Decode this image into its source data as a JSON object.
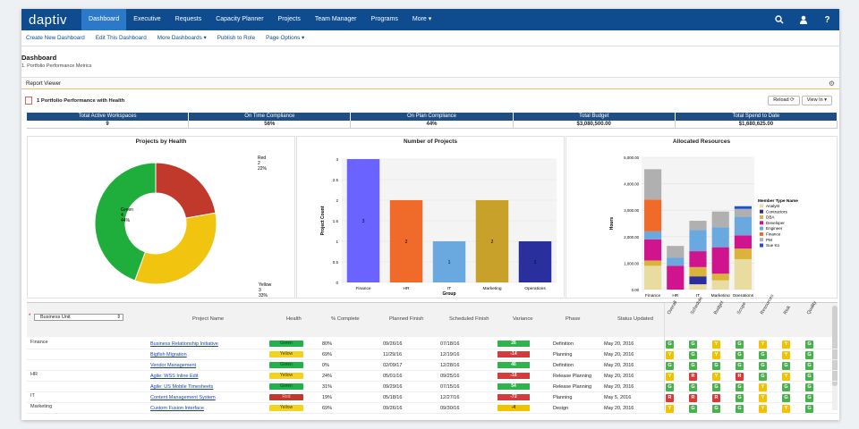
{
  "app": {
    "logo": "daptiv"
  },
  "nav": {
    "items": [
      "Dashboard",
      "Executive",
      "Requests",
      "Capacity Planner",
      "Projects",
      "Team Manager",
      "Programs",
      "More ▾"
    ]
  },
  "subnav": {
    "items": [
      "Create New Dashboard",
      "Edit This Dashboard",
      "More Dashboards ▾",
      "Publish to Role",
      "Page Options ▾"
    ]
  },
  "page": {
    "title": "Dashboard",
    "subtitle": "1. Portfolio Performance Metrics"
  },
  "report": {
    "viewer_label": "Report Viewer",
    "title": "1 Portfolio Performance with Health",
    "reload_label": "Reload",
    "viewin_label": "View In ▾"
  },
  "kpis": [
    {
      "label": "Total Active Workspaces",
      "value": "9"
    },
    {
      "label": "On Time Compliance",
      "value": "56%"
    },
    {
      "label": "On Plan Compliance",
      "value": "44%"
    },
    {
      "label": "Total Budget",
      "value": "$3,080,500.00"
    },
    {
      "label": "Total Spend to Date",
      "value": "$1,680,625.00"
    }
  ],
  "chart_data": [
    {
      "type": "pie",
      "title": "Projects by Health",
      "slices": [
        {
          "label": "Red",
          "value": 2,
          "pct": "22%",
          "color": "#c0392b"
        },
        {
          "label": "Yellow",
          "value": 3,
          "pct": "33%",
          "color": "#f1c40f"
        },
        {
          "label": "Green",
          "value": 4,
          "pct": "44%",
          "color": "#1fae3b"
        }
      ]
    },
    {
      "type": "bar",
      "title": "Number of Projects",
      "xlabel": "Group",
      "ylabel": "Project Count",
      "categories": [
        "Finance",
        "HR",
        "IT",
        "Marketing",
        "Operations"
      ],
      "values": [
        3,
        2,
        1,
        2,
        1
      ],
      "colors": [
        "#6b63ff",
        "#f06a2a",
        "#6aa8e0",
        "#c8a12a",
        "#2a2f9e"
      ],
      "ylim": [
        0,
        3
      ],
      "yticks": [
        "0",
        "0.5",
        "1",
        "1.5",
        "2",
        "2.5",
        "3"
      ]
    },
    {
      "type": "bar",
      "title": "Allocated Resources",
      "ylabel": "Hours",
      "stacked": true,
      "categories": [
        "Finance",
        "HR",
        "IT",
        "Marketing",
        "Operations"
      ],
      "ylim": [
        0,
        5000
      ],
      "yticks": [
        "0.00",
        "1,000.00",
        "2,000.00",
        "3,000.00",
        "4,000.00",
        "5,000.00"
      ],
      "legend_title": "Member Type Name",
      "series": [
        {
          "name": "Analyst",
          "color": "#e8dca0",
          "values": [
            900,
            0,
            200,
            350,
            1150
          ]
        },
        {
          "name": "Contractors",
          "color": "#2b2f9e",
          "values": [
            0,
            0,
            300,
            0,
            0
          ]
        },
        {
          "name": "DBA",
          "color": "#d9b33a",
          "values": [
            200,
            0,
            350,
            250,
            400
          ]
        },
        {
          "name": "Developer",
          "color": "#d0148e",
          "values": [
            800,
            900,
            600,
            1000,
            500
          ]
        },
        {
          "name": "Engineer",
          "color": "#6aa8e0",
          "values": [
            300,
            300,
            800,
            750,
            700
          ]
        },
        {
          "name": "Finance",
          "color": "#f06a2a",
          "values": [
            1200,
            0,
            0,
            0,
            0
          ]
        },
        {
          "name": "PM",
          "color": "#b0b0b0",
          "values": [
            1150,
            450,
            350,
            600,
            300
          ]
        },
        {
          "name": "Sue Ko",
          "color": "#1c4fd8",
          "values": [
            0,
            0,
            0,
            0,
            100
          ]
        }
      ]
    }
  ],
  "grid": {
    "filter_label": "Business Unit",
    "headers": {
      "name": "Project Name",
      "health": "Health",
      "complete": "% Complete",
      "planned": "Planned Finish",
      "scheduled": "Scheduled Finish",
      "variance": "Variance",
      "phase": "Phase",
      "updated": "Status Updated"
    },
    "indicators": [
      "Overall",
      "Schedule",
      "Budget",
      "Scope",
      "Resources",
      "Risk",
      "Quality"
    ],
    "groups": [
      {
        "name": "Finance",
        "row": 0
      },
      {
        "name": "HR",
        "row": 3
      },
      {
        "name": "IT",
        "row": 5
      },
      {
        "name": "Marketing",
        "row": 6
      }
    ],
    "rows": [
      {
        "name": "Business Relationship Initiative",
        "health": "Green",
        "complete": "80%",
        "planned": "09/26/16",
        "scheduled": "07/18/16",
        "variance": "26",
        "phase": "Definition",
        "updated": "May 20, 2016",
        "ind": [
          "G",
          "G",
          "Y",
          "G",
          "Y",
          "Y",
          "G"
        ]
      },
      {
        "name": "Bigfish Migration",
        "health": "Yellow",
        "complete": "69%",
        "planned": "11/29/16",
        "scheduled": "12/19/16",
        "variance": "-14",
        "phase": "Planning",
        "updated": "May 20, 2016",
        "ind": [
          "Y",
          "G",
          "Y",
          "G",
          "G",
          "Y",
          "G"
        ]
      },
      {
        "name": "Vendor Management",
        "health": "Green",
        "complete": "0%",
        "planned": "02/09/17",
        "scheduled": "12/28/16",
        "variance": "46",
        "phase": "Definition",
        "updated": "May 20, 2016",
        "ind": [
          "G",
          "G",
          "G",
          "G",
          "G",
          "G",
          "G"
        ]
      },
      {
        "name": "Agile: WSS Inline Edit",
        "health": "Yellow",
        "complete": "24%",
        "planned": "05/01/16",
        "scheduled": "09/25/16",
        "variance": "-16",
        "phase": "Release Planning",
        "updated": "May 20, 2016",
        "ind": [
          "Y",
          "R",
          "Y",
          "R",
          "G",
          "Y",
          "G"
        ]
      },
      {
        "name": "Agile: US Mobile Timesheets",
        "health": "Green",
        "complete": "31%",
        "planned": "09/29/16",
        "scheduled": "07/15/16",
        "variance": "54",
        "phase": "Release Planning",
        "updated": "May 20, 2016",
        "ind": [
          "G",
          "G",
          "G",
          "G",
          "Y",
          "G",
          "G"
        ]
      },
      {
        "name": "Content Management System",
        "health": "Red",
        "complete": "19%",
        "planned": "05/18/16",
        "scheduled": "12/27/16",
        "variance": "-72",
        "phase": "Planning",
        "updated": "May 5, 2016",
        "ind": [
          "R",
          "R",
          "R",
          "G",
          "Y",
          "G",
          "G"
        ]
      },
      {
        "name": "Custom Fusion Interface",
        "health": "Yellow",
        "complete": "69%",
        "planned": "09/26/16",
        "scheduled": "09/30/16",
        "variance": "-4",
        "phase": "Design",
        "updated": "May 20, 2016",
        "ind": [
          "Y",
          "G",
          "G",
          "G",
          "Y",
          "Y",
          "G"
        ]
      }
    ]
  },
  "colors": {
    "nav": "#0f4b8f",
    "nav_active": "#2c79c9",
    "kpi_head": "#1f4e84",
    "green": "#1fae3b",
    "yellow": "#f1c40f",
    "red": "#c0392b"
  }
}
